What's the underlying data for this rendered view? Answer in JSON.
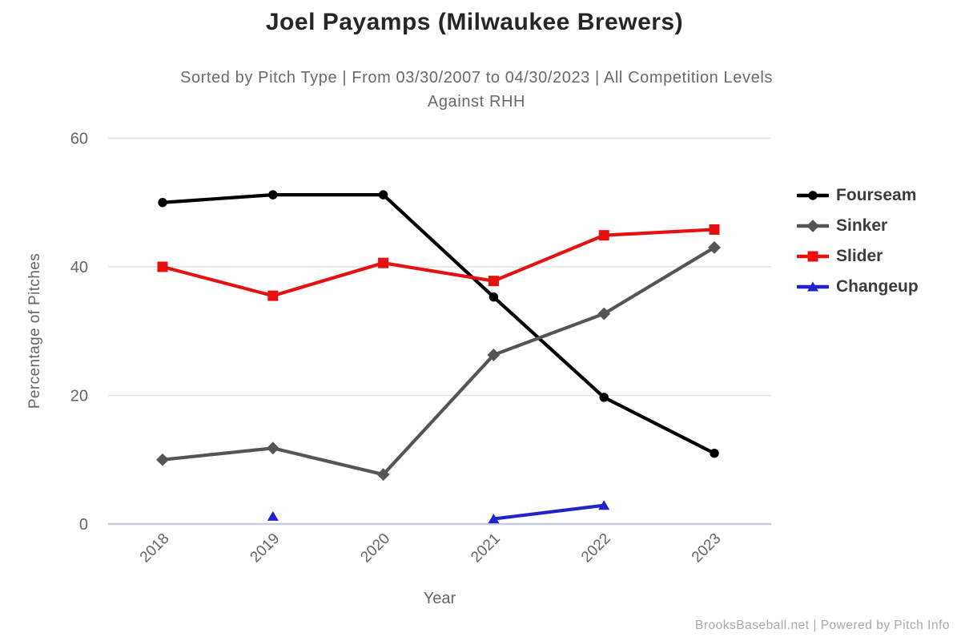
{
  "header": {
    "title": "Joel Payamps (Milwaukee Brewers)",
    "subtitle_line1": "Sorted by Pitch Type | From 03/30/2007 to 04/30/2023 | All Competition Levels",
    "subtitle_line2": "Against RHH"
  },
  "chart_data": {
    "type": "line",
    "title": "Joel Payamps (Milwaukee Brewers)",
    "xlabel": "Year",
    "ylabel": "Percentage of Pitches",
    "categories": [
      "2018",
      "2019",
      "2020",
      "2021",
      "2022",
      "2023"
    ],
    "y_ticks": [
      0,
      20,
      40,
      60
    ],
    "ylim": [
      0,
      62
    ],
    "grid": true,
    "legend_position": "right",
    "series": [
      {
        "name": "Fourseam",
        "color": "#000000",
        "marker": "circle",
        "values": [
          50.0,
          51.2,
          51.2,
          35.3,
          19.7,
          11.0
        ]
      },
      {
        "name": "Sinker",
        "color": "#555555",
        "marker": "diamond",
        "values": [
          10.0,
          11.8,
          7.7,
          26.3,
          32.7,
          43.0
        ]
      },
      {
        "name": "Slider",
        "color": "#e61010",
        "marker": "square",
        "values": [
          40.0,
          35.5,
          40.6,
          37.8,
          44.9,
          45.8
        ]
      },
      {
        "name": "Changeup",
        "color": "#2222cc",
        "marker": "triangle",
        "values": [
          null,
          1.2,
          null,
          0.8,
          2.9,
          null
        ]
      }
    ]
  },
  "footer": {
    "credit": "BrooksBaseball.net | Powered by Pitch Info"
  },
  "style": {
    "background": "#ffffff",
    "grid_color": "#e4e4e4",
    "axis_line_color": "#c6cede",
    "tick_label_color": "#666666",
    "title_color": "#262626",
    "subtitle_color": "#696969",
    "legend_text_color": "#3c3c3c",
    "footer_color": "#a9a9a9"
  }
}
